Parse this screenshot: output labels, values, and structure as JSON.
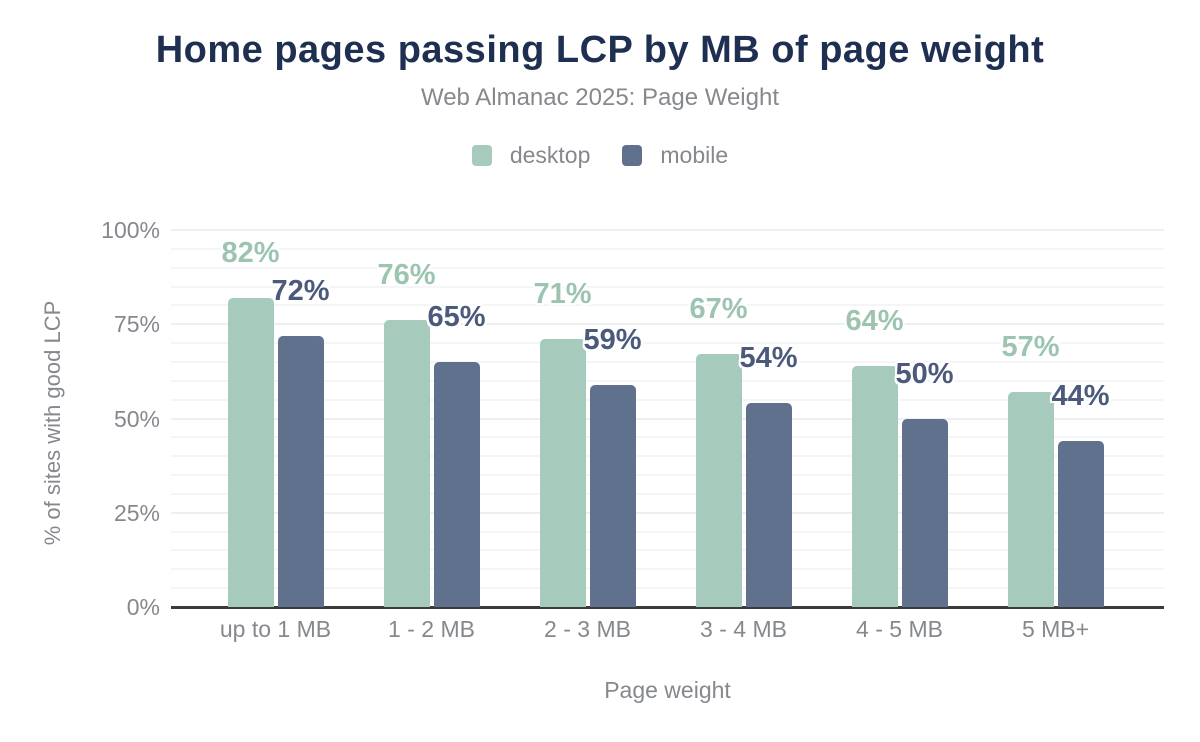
{
  "title": "Home pages passing LCP by MB of page weight",
  "subtitle": "Web Almanac 2025: Page Weight",
  "colors": {
    "title_text": "#1e2f51",
    "muted_text": "#85888d",
    "desktop": "#a6cabb",
    "mobile": "#5f718c",
    "desktop_label": "#9cc4b1",
    "mobile_label": "#4b5a7b",
    "gridline": "#f3f5f7",
    "axis_line": "#3a3b3d"
  },
  "legend": {
    "items": [
      {
        "label": "desktop",
        "color": "#a6cabb"
      },
      {
        "label": "mobile",
        "color": "#5f718c"
      }
    ]
  },
  "chart_data": {
    "type": "bar",
    "title": "Home pages passing LCP by MB of page weight",
    "subtitle": "Web Almanac 2025: Page Weight",
    "categories": [
      "up to 1 MB",
      "1 - 2 MB",
      "2 - 3 MB",
      "3 - 4 MB",
      "4 - 5 MB",
      "5 MB+"
    ],
    "series": [
      {
        "name": "desktop",
        "values": [
          82,
          76,
          71,
          67,
          64,
          57
        ],
        "color": "#a6cabb",
        "label_color": "#9cc4b1"
      },
      {
        "name": "mobile",
        "values": [
          72,
          65,
          59,
          54,
          50,
          44
        ],
        "color": "#5f718c",
        "label_color": "#4b5a7b"
      }
    ],
    "value_suffix": "%",
    "xlabel": "Page weight",
    "ylabel": "% of sites with good LCP",
    "ylim": [
      0,
      100
    ],
    "yticks": [
      0,
      25,
      50,
      75,
      100
    ],
    "grid": {
      "orientation": "horizontal",
      "step": 5
    },
    "legend_position": "top",
    "data_labels": "above bars, colored per series, white halo"
  }
}
